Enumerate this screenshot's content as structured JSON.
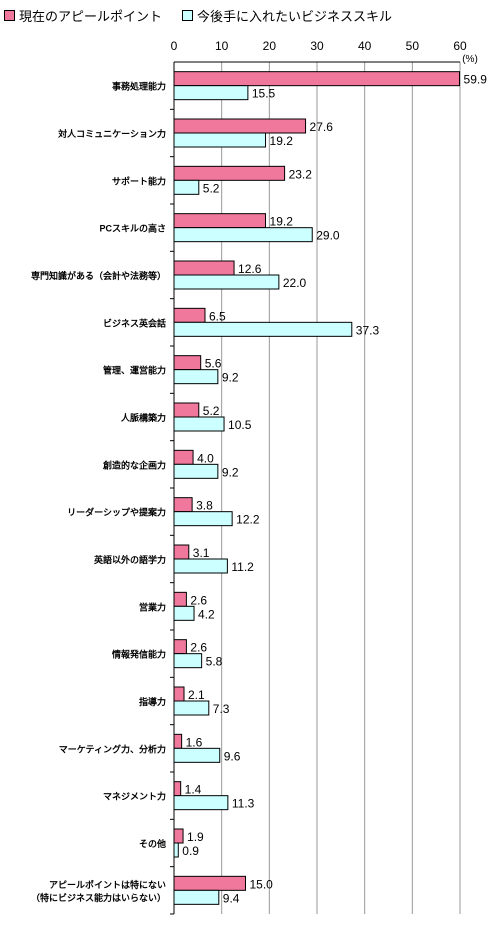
{
  "legend": {
    "current_label": "現在のアピールポイント",
    "future_label": "今後手に入れたいビジネススキル"
  },
  "colors": {
    "current": "#f0789c",
    "future": "#ccffff",
    "stroke": "#000000"
  },
  "chart_data": {
    "type": "bar",
    "orientation": "horizontal",
    "unit_label": "(%)",
    "xlim": [
      0,
      60
    ],
    "x_ticks": [
      0,
      10,
      20,
      30,
      40,
      50,
      60
    ],
    "grid": true,
    "legend_position": "top",
    "categories": [
      "事務処理能力",
      "対人コミュニケーション力",
      "サポート能力",
      "PCスキルの高さ",
      "専門知識がある（会計や法務等）",
      "ビジネス英会話",
      "管理、運営能力",
      "人脈構築力",
      "創造的な企画力",
      "リーダーシップや提案力",
      "英語以外の語学力",
      "営業力",
      "情報発信能力",
      "指導力",
      "マーケティング力、分析力",
      "マネジメント力",
      "その他",
      "アピールポイントは特にない\n（特にビジネス能力はいらない）"
    ],
    "series": [
      {
        "name": "現在のアピールポイント",
        "values": [
          59.9,
          27.6,
          23.2,
          19.2,
          12.6,
          6.5,
          5.6,
          5.2,
          4.0,
          3.8,
          3.1,
          2.6,
          2.6,
          2.1,
          1.6,
          1.4,
          1.9,
          15.0
        ]
      },
      {
        "name": "今後手に入れたいビジネススキル",
        "values": [
          15.5,
          19.2,
          5.2,
          29.0,
          22.0,
          37.3,
          9.2,
          10.5,
          9.2,
          12.2,
          11.2,
          4.2,
          5.8,
          7.3,
          9.6,
          11.3,
          0.9,
          9.4
        ]
      }
    ]
  }
}
